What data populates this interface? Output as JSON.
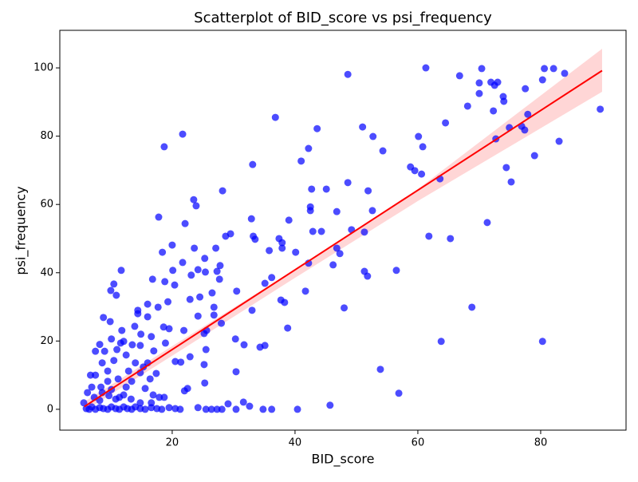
{
  "chart_data": {
    "type": "scatter",
    "title": "Scatterplot of BID_score vs psi_frequency",
    "x_label": "BID_score",
    "y_label": "psi_frequency",
    "color": "#0000ff",
    "x": [
      48.6,
      61.3,
      66.8,
      70.4,
      80.6,
      82.1,
      83.9,
      80.3,
      71.9,
      73,
      70,
      72.5,
      77.5,
      70,
      73.9,
      68.1,
      72.3,
      74,
      89.7,
      77.9,
      36.8,
      43.6,
      51,
      74.9,
      76.9,
      77.4,
      21.7,
      60.1,
      52.7,
      72.7,
      83,
      18.7,
      42.2,
      60.8,
      54.3,
      64.5,
      33.1,
      41,
      74.4,
      59.5,
      58.8,
      60.6,
      63.6,
      75.2,
      79,
      48.6,
      42.7,
      45.1,
      28.2,
      51.9,
      23.5,
      23.9,
      42.5,
      42.5,
      46.8,
      52.6,
      17.8,
      32.9,
      39,
      22.1,
      71.3,
      49.2,
      42.9,
      44.3,
      51.3,
      28.7,
      29.5,
      33.2,
      33.5,
      37.4,
      61.8,
      65.3,
      20,
      37.9,
      37.9,
      46.8,
      23.6,
      27.1,
      35.8,
      40.1,
      18.4,
      47.3,
      25.3,
      21.7,
      27.8,
      42.2,
      46.2,
      27.3,
      25.4,
      24.2,
      20.1,
      11.7,
      51.3,
      56.5,
      51.8,
      36.2,
      23.1,
      16.8,
      27.7,
      18.8,
      20.4,
      10.5,
      35.1,
      10,
      10.9,
      30.5,
      41.7,
      26.5,
      24.5,
      22.9,
      37.7,
      38.3,
      16,
      19.3,
      17.7,
      26.8,
      48,
      68.8,
      14.4,
      33,
      14.4,
      8.8,
      16,
      24.2,
      26.8,
      9.9,
      28,
      13.9,
      18.6,
      19.5,
      38.8,
      25.6,
      11.8,
      21.9,
      14.9,
      25.2,
      16.6,
      30.3,
      63.8,
      80.3,
      31.7,
      34.3,
      35.1,
      25.5,
      22.9,
      21.4,
      25.2,
      20.5,
      53.9,
      30.4,
      25.3,
      56.9,
      22.5,
      22,
      45.7,
      29.1,
      31.6,
      32.6,
      40.4,
      34.8,
      36.2,
      30.4,
      24.2,
      25.5,
      26.4,
      27.3,
      28.1,
      6,
      6.5,
      6.9,
      7.5,
      8.2,
      8.8,
      9.5,
      10.1,
      10.8,
      11.4,
      12.1,
      12.7,
      13.4,
      14,
      14.8,
      15.6,
      16.6,
      17.5,
      18.3,
      19.5,
      20.5,
      21.3,
      5.6,
      6.2,
      6.9,
      6.7,
      7.5,
      8.4,
      7.5,
      8.2,
      9,
      8.6,
      9.5,
      10.1,
      10.5,
      11,
      11.6,
      11.2,
      12.1,
      12.5,
      12.9,
      13.5,
      12.5,
      14,
      14.8,
      15.3,
      15.6,
      16.4,
      16.9,
      17.4,
      17.9,
      18.7,
      13.3,
      11.4,
      9.7,
      8.6,
      7.3,
      14.8,
      16.6,
      8.2,
      10.1,
      10.8,
      12.1,
      9.5,
      13.4,
      16,
      18.9,
      17,
      14.8
    ],
    "values": [
      98.1,
      100,
      97.7,
      99.8,
      99.8,
      99.8,
      98.4,
      96.5,
      95.8,
      95.8,
      95.6,
      94.9,
      93.9,
      92.5,
      91.6,
      88.8,
      87.4,
      90.2,
      87.9,
      86.4,
      85.5,
      82.2,
      82.7,
      82.5,
      82.9,
      81.8,
      80.6,
      79.9,
      79.9,
      79.2,
      78.5,
      76.9,
      76.4,
      76.9,
      75.7,
      83.9,
      71.7,
      72.7,
      70.8,
      69.9,
      71,
      68.9,
      67.5,
      66.6,
      74.3,
      66.4,
      64.5,
      64.5,
      64,
      64,
      61.4,
      59.6,
      59.3,
      58.2,
      57.9,
      58.2,
      56.3,
      55.8,
      55.4,
      54.4,
      54.7,
      52.6,
      52.1,
      52.1,
      51.9,
      50.7,
      51.4,
      50.7,
      49.8,
      50,
      50.7,
      50,
      48.1,
      48.8,
      47.2,
      47.2,
      47.2,
      47.2,
      46.5,
      46,
      46,
      45.6,
      44.2,
      43,
      42.1,
      42.8,
      42.3,
      40.4,
      40.2,
      40.9,
      40.7,
      40.7,
      40.4,
      40.7,
      39,
      38.6,
      39.3,
      38.1,
      38.1,
      37.4,
      36.4,
      36.7,
      36.9,
      34.8,
      33.4,
      34.6,
      34.6,
      34.1,
      32.9,
      32.2,
      32,
      31.3,
      30.8,
      31.5,
      29.9,
      29.9,
      29.7,
      29.9,
      29,
      29,
      28,
      26.9,
      27.1,
      27.3,
      27.6,
      25.7,
      25.2,
      24.3,
      24.1,
      23.6,
      23.8,
      23.1,
      23.1,
      23.1,
      22,
      22.2,
      21.3,
      20.6,
      19.9,
      19.9,
      18.9,
      18.2,
      18.7,
      17.5,
      15.4,
      13.8,
      13.1,
      14,
      11.7,
      11,
      7.7,
      4.7,
      6.1,
      5.4,
      1.2,
      1.6,
      2.1,
      0.9,
      0,
      0,
      0,
      0,
      0.5,
      0,
      0,
      0,
      0,
      0.2,
      0,
      0.7,
      0,
      0.5,
      0.2,
      0,
      0.7,
      0.2,
      0,
      0.7,
      0.2,
      0,
      0.7,
      0.2,
      0,
      0.5,
      0.2,
      0,
      0.5,
      0.2,
      0,
      1.9,
      4.9,
      6.5,
      10,
      10,
      6.5,
      17,
      19,
      17,
      13.6,
      11.2,
      20.6,
      14.3,
      17.5,
      19.4,
      8.9,
      19.9,
      15.9,
      11.2,
      18.9,
      6.5,
      13.6,
      18.7,
      12.4,
      6.1,
      8.9,
      4.2,
      10.5,
      3.5,
      3.5,
      3,
      3.5,
      4,
      4.9,
      3.5,
      1.9,
      1.9,
      2.6,
      5.8,
      3,
      4.2,
      8.2,
      8.2,
      13.6,
      19.4,
      17.1,
      10.7
    ],
    "fit": {
      "color": "#ff0000",
      "x": [
        5.7,
        90
      ],
      "y": [
        0.8,
        99.2
      ]
    },
    "ci": {
      "color": "#ffcccc",
      "x": [
        5.7,
        20,
        40,
        60,
        90
      ],
      "lower": [
        -0.5,
        15.7,
        38.5,
        61,
        93
      ],
      "upper": [
        2.2,
        18.5,
        41,
        64.5,
        105.6
      ]
    },
    "xlim": [
      1.7,
      93.9
    ],
    "ylim": [
      -6.1,
      111
    ],
    "xticks": [
      20,
      40,
      60,
      80
    ],
    "yticks": [
      0,
      20,
      40,
      60,
      80,
      100
    ],
    "grid": false
  }
}
